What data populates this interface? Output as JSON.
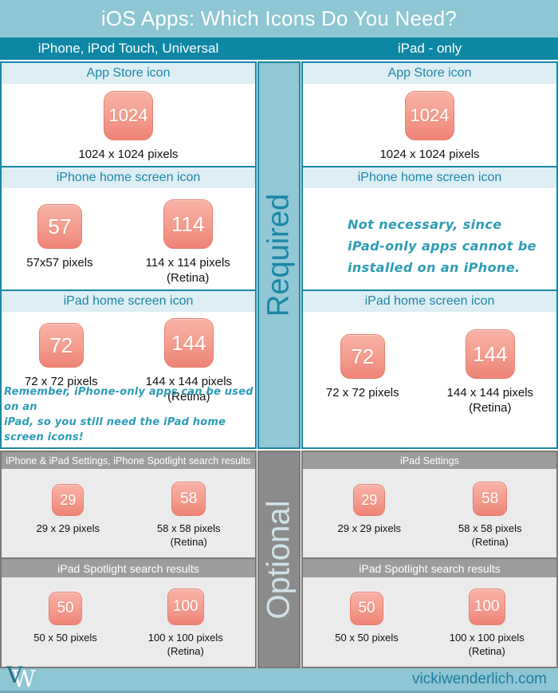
{
  "header": {
    "title": "iOS Apps: Which Icons Do You Need?"
  },
  "columns": {
    "left": "iPhone, iPod Touch, Universal",
    "right": "iPad - only"
  },
  "bands": {
    "required": "Required",
    "optional": "Optional"
  },
  "cells": {
    "left_appstore": {
      "header": "App Store icon",
      "icon1": "1024",
      "label1": "1024 x 1024 pixels"
    },
    "left_iphone_home": {
      "header": "iPhone home screen icon",
      "icon1": "57",
      "label1": "57x57 pixels",
      "icon2": "114",
      "label2": "114 x 114 pixels",
      "label2b": "(Retina)"
    },
    "left_ipad_home": {
      "header": "iPad home screen icon",
      "icon1": "72",
      "label1": "72 x 72 pixels",
      "icon2": "144",
      "label2": "144 x 144 pixels",
      "label2b": "(Retina)",
      "note_line1": "Remember, iPhone-only apps can be used on an",
      "note_line2": "iPad, so you still need the iPad home screen icons!"
    },
    "left_settings": {
      "header": "iPhone & iPad Settings, iPhone Spotlight search results",
      "icon1": "29",
      "label1": "29 x 29 pixels",
      "icon2": "58",
      "label2": "58 x 58 pixels",
      "label2b": "(Retina)"
    },
    "left_spotlight": {
      "header": "iPad Spotlight search results",
      "icon1": "50",
      "label1": "50 x 50 pixels",
      "icon2": "100",
      "label2": "100 x 100 pixels",
      "label2b": "(Retina)"
    },
    "right_appstore": {
      "header": "App Store icon",
      "icon1": "1024",
      "label1": "1024 x 1024 pixels"
    },
    "right_iphone_home": {
      "header": "iPhone home screen icon",
      "note_line1": "Not necessary, since",
      "note_line2": "iPad-only apps cannot be",
      "note_line3": "installed on an iPhone."
    },
    "right_ipad_home": {
      "header": "iPad home screen icon",
      "icon1": "72",
      "label1": "72 x 72 pixels",
      "icon2": "144",
      "label2": "144 x 144 pixels",
      "label2b": "(Retina)"
    },
    "right_settings": {
      "header": "iPad Settings",
      "icon1": "29",
      "label1": "29 x 29 pixels",
      "icon2": "58",
      "label2": "58 x 58 pixels",
      "label2b": "(Retina)"
    },
    "right_spotlight": {
      "header": "iPad Spotlight search results",
      "icon1": "50",
      "label1": "50 x 50 pixels",
      "icon2": "100",
      "label2": "100 x 100 pixels",
      "label2b": "(Retina)"
    }
  },
  "footer": {
    "site": "vickiwenderlich.com",
    "logo_v": "V",
    "logo_w": "W"
  },
  "colors": {
    "light_teal": "#8ec6d3",
    "dark_teal": "#0d87a4",
    "teal_border": "#1a87a4",
    "row_header_bg": "#ddeef5",
    "row_header_text": "#1b87a5",
    "handwriting_teal": "#2d9cb5",
    "gray_header": "#9c9c9c",
    "gray_body": "#ebebeb",
    "gray_band": "#8b8b8b",
    "gray_border": "#7a7a7a",
    "optional_text": "#cfe2e8",
    "icon_gradient_top": "#f9b2a6",
    "icon_gradient_bottom": "#ee8376",
    "icon_border": "#e87f70",
    "footer_text": "#1f7f9c"
  }
}
